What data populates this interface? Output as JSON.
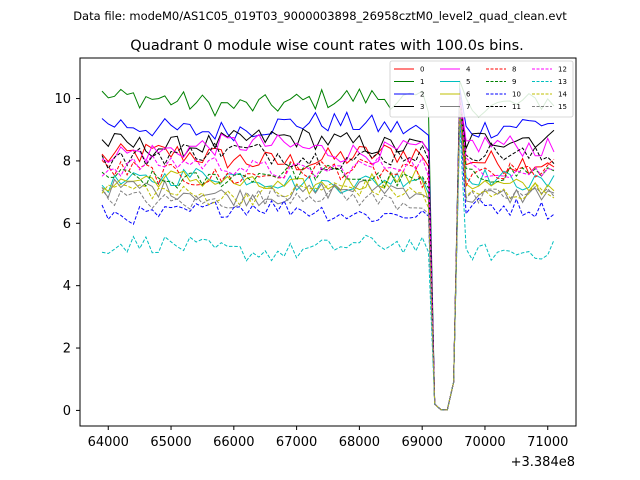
{
  "suptitle": "Data file: modeM0/AS1C05_019T03_9000003898_26958cztM0_level2_quad_clean.evt",
  "chart_data": {
    "type": "line",
    "title": "Quadrant 0 module wise count rates with 100.0s bins.",
    "xlabel": "",
    "ylabel": "",
    "x_offset_label": "+3.384e8",
    "xlim": [
      63550,
      71450
    ],
    "ylim": [
      -0.5,
      11.3
    ],
    "xticks": [
      64000,
      65000,
      66000,
      67000,
      68000,
      69000,
      70000,
      71000
    ],
    "yticks": [
      0,
      2,
      4,
      6,
      8,
      10
    ],
    "x_start": 63900,
    "x_step": 100,
    "n_points": 73,
    "dip": {
      "x": [
        69100,
        69200,
        69300,
        69400,
        69500,
        69600
      ],
      "values": [
        0.9,
        0.2,
        0.02,
        0.02,
        0.9,
        10.0
      ]
    },
    "legend_location": "upper right",
    "series": [
      {
        "name": "0",
        "color": "#ff0000",
        "dash": "solid",
        "base": 8.1,
        "jitter": 0.38
      },
      {
        "name": "1",
        "color": "#008000",
        "dash": "solid",
        "base": 9.9,
        "jitter": 0.35
      },
      {
        "name": "2",
        "color": "#0000ff",
        "dash": "solid",
        "base": 9.1,
        "jitter": 0.35
      },
      {
        "name": "3",
        "color": "#000000",
        "dash": "solid",
        "base": 8.6,
        "jitter": 0.35
      },
      {
        "name": "4",
        "color": "#ff00ff",
        "dash": "solid",
        "base": 8.4,
        "jitter": 0.35
      },
      {
        "name": "5",
        "color": "#00bfbf",
        "dash": "solid",
        "base": 7.4,
        "jitter": 0.3
      },
      {
        "name": "6",
        "color": "#bfbf00",
        "dash": "solid",
        "base": 7.3,
        "jitter": 0.3
      },
      {
        "name": "7",
        "color": "#808080",
        "dash": "solid",
        "base": 7.0,
        "jitter": 0.3
      },
      {
        "name": "8",
        "color": "#ff0000",
        "dash": "dashed",
        "base": 7.6,
        "jitter": 0.35
      },
      {
        "name": "9",
        "color": "#008000",
        "dash": "dashed",
        "base": 7.5,
        "jitter": 0.3
      },
      {
        "name": "10",
        "color": "#0000ff",
        "dash": "dashed",
        "base": 6.4,
        "jitter": 0.3
      },
      {
        "name": "11",
        "color": "#000000",
        "dash": "dashed",
        "base": 8.2,
        "jitter": 0.35
      },
      {
        "name": "12",
        "color": "#ff00ff",
        "dash": "dashed",
        "base": 7.8,
        "jitter": 0.3
      },
      {
        "name": "13",
        "color": "#00bfbf",
        "dash": "dashed",
        "base": 5.2,
        "jitter": 0.3
      },
      {
        "name": "14",
        "color": "#bfbf00",
        "dash": "dashed",
        "base": 7.0,
        "jitter": 0.3
      },
      {
        "name": "15",
        "color": "#808080",
        "dash": "dashed",
        "base": 6.8,
        "jitter": 0.3
      }
    ]
  }
}
